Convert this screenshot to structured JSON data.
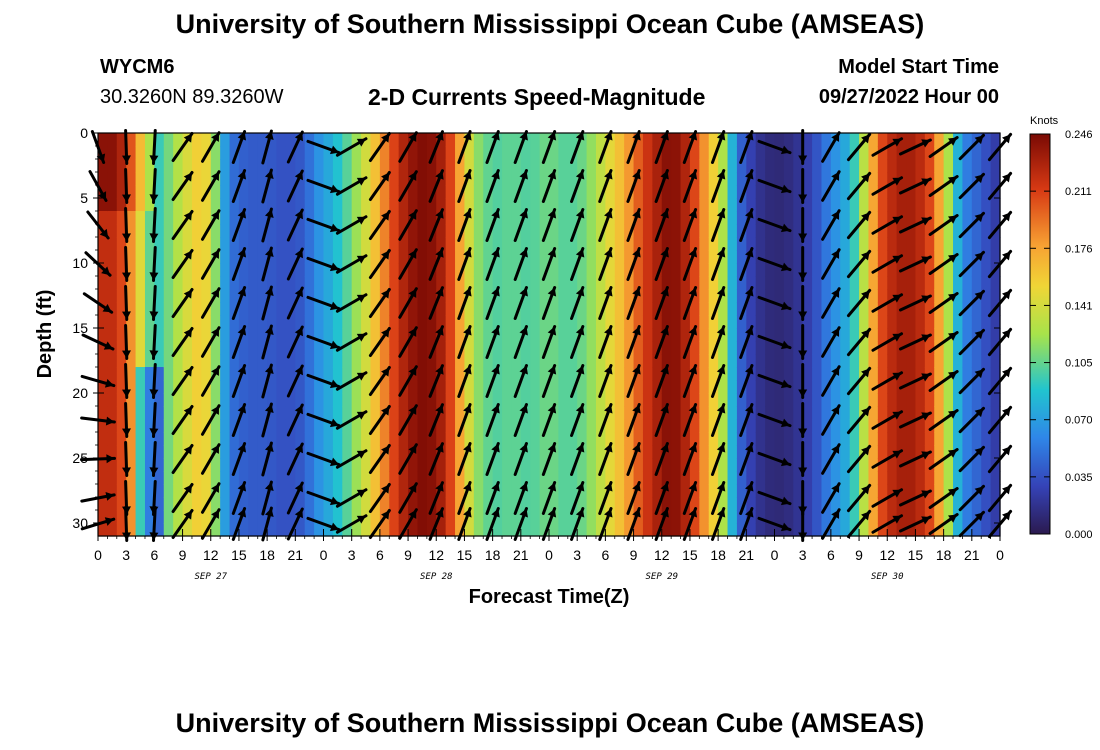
{
  "header": {
    "title": "University of Southern Mississippi Ocean Cube (AMSEAS)",
    "station": "WYCM6",
    "coords": "30.3260N  89.3260W",
    "subtitle": "2-D Currents Speed-Magnitude",
    "model_start_label": "Model Start Time",
    "model_start_value": "09/27/2022 Hour 00"
  },
  "footer": {
    "title": "University of Southern Mississippi Ocean Cube (AMSEAS)"
  },
  "chart_data": {
    "type": "heatmap",
    "title": "2-D Currents Speed-Magnitude",
    "xlabel": "Forecast Time(Z)",
    "ylabel": "Depth (ft)",
    "x_tick_labels": [
      "0",
      "3",
      "6",
      "9",
      "12",
      "15",
      "18",
      "21",
      "0",
      "3",
      "6",
      "9",
      "12",
      "15",
      "18",
      "21",
      "0",
      "3",
      "6",
      "9",
      "12",
      "15",
      "18",
      "21",
      "0",
      "3",
      "6",
      "9",
      "12",
      "15",
      "18",
      "21",
      "0"
    ],
    "date_labels": [
      {
        "label": "SEP 27",
        "hour": 12
      },
      {
        "label": "SEP 28",
        "hour": 36
      },
      {
        "label": "SEP 29",
        "hour": 60
      },
      {
        "label": "SEP 30",
        "hour": 84
      }
    ],
    "xlim": [
      0,
      96
    ],
    "y_ticks": [
      0,
      5,
      10,
      15,
      20,
      25,
      30
    ],
    "ylim": [
      0,
      31
    ],
    "colorbar": {
      "unit": "Knots",
      "ticks": [
        "0.246",
        "0.211",
        "0.176",
        "0.141",
        "0.105",
        "0.070",
        "0.035",
        "0.000"
      ],
      "range": [
        0,
        0.246
      ]
    },
    "speed_knots_by_hour": [
      [
        0,
        0.22
      ],
      [
        2,
        0.22
      ],
      [
        4,
        0.17
      ],
      [
        5,
        0.12
      ],
      [
        6,
        0.09
      ],
      [
        7,
        0.1
      ],
      [
        8,
        0.12
      ],
      [
        10,
        0.15
      ],
      [
        11,
        0.16
      ],
      [
        12,
        0.14
      ],
      [
        13,
        0.09
      ],
      [
        14,
        0.05
      ],
      [
        16,
        0.04
      ],
      [
        18,
        0.04
      ],
      [
        20,
        0.035
      ],
      [
        22,
        0.04
      ],
      [
        23,
        0.06
      ],
      [
        25,
        0.08
      ],
      [
        27,
        0.11
      ],
      [
        29,
        0.15
      ],
      [
        31,
        0.2
      ],
      [
        33,
        0.235
      ],
      [
        35,
        0.246
      ],
      [
        37,
        0.225
      ],
      [
        39,
        0.16
      ],
      [
        40,
        0.12
      ],
      [
        42,
        0.1
      ],
      [
        44,
        0.105
      ],
      [
        46,
        0.1
      ],
      [
        48,
        0.11
      ],
      [
        50,
        0.1
      ],
      [
        52,
        0.11
      ],
      [
        54,
        0.14
      ],
      [
        56,
        0.17
      ],
      [
        58,
        0.21
      ],
      [
        60,
        0.235
      ],
      [
        61,
        0.246
      ],
      [
        63,
        0.22
      ],
      [
        65,
        0.17
      ],
      [
        67,
        0.11
      ],
      [
        68,
        0.05
      ],
      [
        70,
        0.02
      ],
      [
        72,
        0.01
      ],
      [
        74,
        0.015
      ],
      [
        76,
        0.03
      ],
      [
        78,
        0.06
      ],
      [
        80,
        0.08
      ],
      [
        81,
        0.11
      ],
      [
        82,
        0.15
      ],
      [
        83,
        0.2
      ],
      [
        85,
        0.23
      ],
      [
        87,
        0.23
      ],
      [
        89,
        0.2
      ],
      [
        90,
        0.15
      ],
      [
        91,
        0.1
      ],
      [
        92,
        0.06
      ],
      [
        94,
        0.04
      ],
      [
        96,
        0.02
      ]
    ],
    "vector_times_hours": [
      0,
      3,
      6,
      9,
      12,
      15,
      18,
      21,
      24,
      27,
      30,
      33,
      36,
      39,
      42,
      45,
      48,
      51,
      54,
      57,
      60,
      63,
      66,
      69,
      72,
      75,
      78,
      81,
      84,
      87,
      90,
      93,
      96
    ],
    "vector_depths_ft": [
      0,
      3,
      6,
      9,
      12,
      15,
      18,
      21,
      24,
      27,
      29
    ],
    "vector_direction_deg_by_hour": [
      [
        0,
        190
      ],
      [
        3,
        178
      ],
      [
        6,
        183
      ],
      [
        9,
        35
      ],
      [
        12,
        30
      ],
      [
        15,
        20
      ],
      [
        18,
        15
      ],
      [
        21,
        25
      ],
      [
        24,
        110
      ],
      [
        27,
        60
      ],
      [
        30,
        35
      ],
      [
        33,
        30
      ],
      [
        36,
        22
      ],
      [
        39,
        20
      ],
      [
        42,
        20
      ],
      [
        45,
        20
      ],
      [
        48,
        20
      ],
      [
        51,
        20
      ],
      [
        54,
        20
      ],
      [
        57,
        20
      ],
      [
        60,
        20
      ],
      [
        63,
        20
      ],
      [
        66,
        20
      ],
      [
        69,
        20
      ],
      [
        72,
        110
      ],
      [
        75,
        180
      ],
      [
        78,
        30
      ],
      [
        81,
        40
      ],
      [
        84,
        60
      ],
      [
        87,
        65
      ],
      [
        90,
        55
      ],
      [
        93,
        45
      ],
      [
        96,
        40
      ]
    ]
  }
}
